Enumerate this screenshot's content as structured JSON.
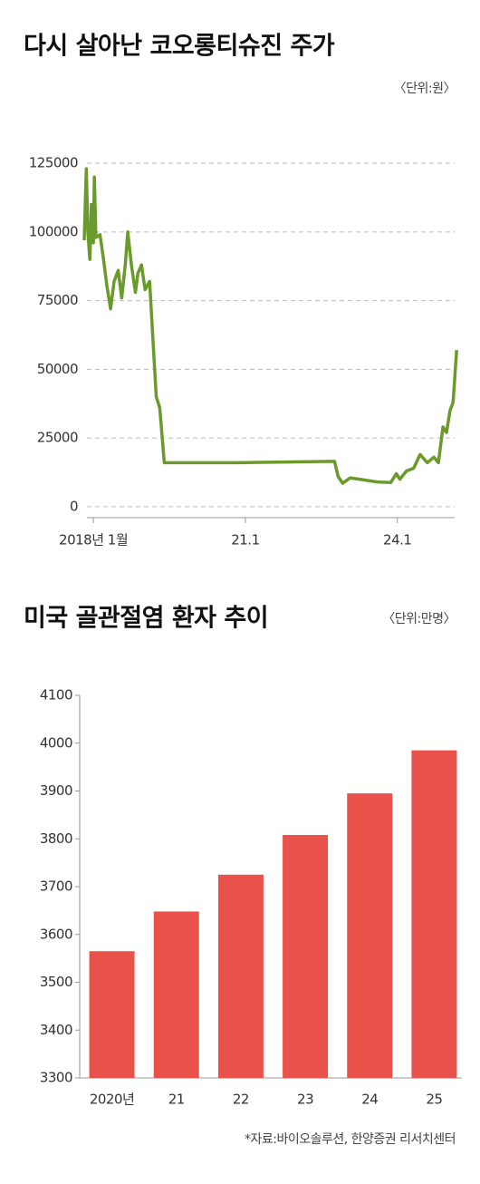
{
  "chart_data": [
    {
      "type": "line",
      "title": "다시 살아난 코오롱티슈진 주가",
      "subtitle": "〈단위:원〉",
      "x": [
        2017.82,
        2017.86,
        2017.89,
        2017.93,
        2017.96,
        2018.0,
        2018.02,
        2018.05,
        2018.13,
        2018.2,
        2018.27,
        2018.34,
        2018.41,
        2018.49,
        2018.56,
        2018.63,
        2018.68,
        2018.75,
        2018.83,
        2018.88,
        2018.95,
        2019.02,
        2019.11,
        2019.24,
        2019.31,
        2019.4,
        2020.82,
        2022.76,
        2022.83,
        2022.92,
        2023.07,
        2023.25,
        2023.43,
        2023.6,
        2023.87,
        2023.98,
        2024.05,
        2024.18,
        2024.32,
        2024.45,
        2024.59,
        2024.72,
        2024.81,
        2024.9,
        2024.97,
        2025.04,
        2025.1,
        2025.17
      ],
      "series": [
        {
          "name": "코오롱티슈진",
          "color": "#6b9a2c",
          "values": [
            97000,
            123000,
            100000,
            90000,
            110000,
            96000,
            120000,
            98000,
            99000,
            90000,
            80000,
            72000,
            82000,
            86000,
            76000,
            88000,
            100000,
            88000,
            78000,
            85000,
            88000,
            79000,
            82000,
            40000,
            36000,
            16000,
            16000,
            16500,
            11000,
            8500,
            10500,
            10000,
            9500,
            9000,
            8800,
            12000,
            10000,
            13000,
            14000,
            19000,
            16000,
            18000,
            16000,
            29000,
            27000,
            35000,
            38000,
            57000
          ]
        }
      ],
      "xlim": [
        2017.73,
        2025.22
      ],
      "xticks": [
        {
          "value": 2018,
          "label": "2018년 1월"
        },
        {
          "value": 2021,
          "label": "21.1"
        },
        {
          "value": 2024,
          "label": "24.1"
        }
      ],
      "ylim": [
        -4000,
        127000
      ],
      "yticks": [
        0,
        25000,
        50000,
        75000,
        100000,
        125000
      ],
      "grid": true
    },
    {
      "type": "bar",
      "title": "미국 골관절염 환자 추이",
      "subtitle": "〈단위:만명〉",
      "categories": [
        "2020년",
        "21",
        "22",
        "23",
        "24",
        "25"
      ],
      "values": [
        3565,
        3648,
        3725,
        3808,
        3895,
        3985
      ],
      "color": "#e8524a",
      "ylim": [
        3300,
        4100
      ],
      "yticks": [
        3300,
        3400,
        3500,
        3600,
        3700,
        3800,
        3900,
        4000,
        4100
      ],
      "grid": false,
      "source": "*자료:바이오솔루션, 한양증권 리서치센터"
    }
  ]
}
